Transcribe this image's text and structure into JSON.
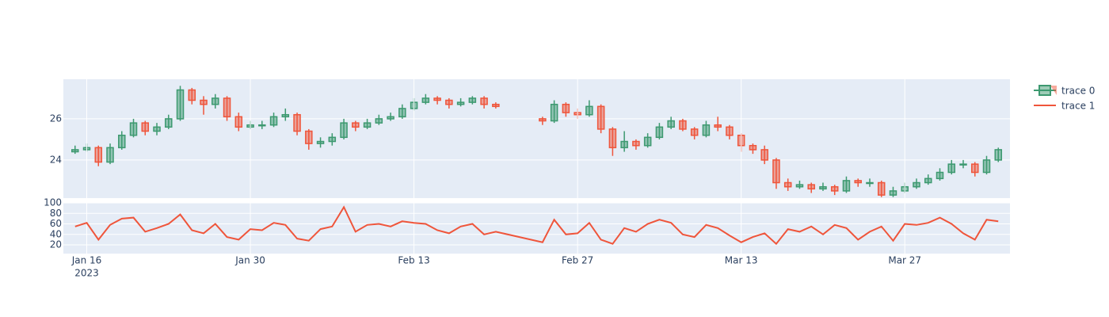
{
  "chart_data": [
    {
      "type": "candlestick",
      "name": "trace 0",
      "increasing_color": "#3D9970",
      "decreasing_color": "#EF553B",
      "x": [
        "2023-01-15",
        "2023-01-16",
        "2023-01-17",
        "2023-01-18",
        "2023-01-19",
        "2023-01-20",
        "2023-01-21",
        "2023-01-22",
        "2023-01-23",
        "2023-01-24",
        "2023-01-25",
        "2023-01-26",
        "2023-01-27",
        "2023-01-28",
        "2023-01-29",
        "2023-01-30",
        "2023-01-31",
        "2023-02-01",
        "2023-02-02",
        "2023-02-03",
        "2023-02-04",
        "2023-02-05",
        "2023-02-06",
        "2023-02-07",
        "2023-02-08",
        "2023-02-09",
        "2023-02-10",
        "2023-02-11",
        "2023-02-12",
        "2023-02-13",
        "2023-02-14",
        "2023-02-15",
        "2023-02-16",
        "2023-02-17",
        "2023-02-18",
        "2023-02-19",
        "2023-02-20",
        "2023-02-24",
        "2023-02-25",
        "2023-02-26",
        "2023-02-27",
        "2023-02-28",
        "2023-03-01",
        "2023-03-02",
        "2023-03-03",
        "2023-03-04",
        "2023-03-05",
        "2023-03-06",
        "2023-03-07",
        "2023-03-08",
        "2023-03-09",
        "2023-03-10",
        "2023-03-11",
        "2023-03-12",
        "2023-03-13",
        "2023-03-14",
        "2023-03-15",
        "2023-03-16",
        "2023-03-17",
        "2023-03-18",
        "2023-03-19",
        "2023-03-20",
        "2023-03-21",
        "2023-03-22",
        "2023-03-23",
        "2023-03-24",
        "2023-03-25",
        "2023-03-26",
        "2023-03-27",
        "2023-03-28",
        "2023-03-29",
        "2023-03-30",
        "2023-03-31",
        "2023-04-01",
        "2023-04-02",
        "2023-04-03",
        "2023-04-04"
      ],
      "open": [
        24.4,
        24.5,
        24.6,
        23.9,
        24.6,
        25.2,
        25.8,
        25.4,
        25.6,
        26.0,
        27.4,
        26.9,
        26.7,
        27.0,
        26.1,
        25.6,
        25.7,
        25.7,
        26.1,
        26.2,
        25.4,
        24.8,
        24.9,
        25.1,
        25.8,
        25.6,
        25.8,
        26.0,
        26.1,
        26.5,
        26.8,
        27.0,
        26.9,
        26.7,
        26.8,
        27.0,
        26.7,
        26.0,
        25.9,
        26.7,
        26.3,
        26.2,
        26.6,
        25.5,
        24.6,
        24.9,
        24.7,
        25.1,
        25.6,
        25.9,
        25.5,
        25.2,
        25.7,
        25.6,
        25.2,
        24.7,
        24.5,
        24.0,
        22.9,
        22.7,
        22.8,
        22.6,
        22.7,
        22.5,
        23.0,
        22.9,
        22.9,
        22.3,
        22.5,
        22.7,
        22.9,
        23.1,
        23.4,
        23.8,
        23.8,
        23.4,
        24.0
      ],
      "high": [
        24.7,
        24.8,
        24.7,
        24.8,
        25.4,
        26.0,
        25.9,
        25.8,
        26.2,
        27.6,
        27.5,
        27.1,
        27.2,
        27.1,
        26.3,
        25.9,
        25.9,
        26.3,
        26.5,
        26.3,
        25.5,
        25.1,
        25.3,
        26.0,
        25.9,
        26.0,
        26.2,
        26.3,
        26.7,
        27.0,
        27.2,
        27.1,
        27.0,
        27.0,
        27.1,
        27.1,
        26.8,
        26.1,
        26.9,
        26.8,
        26.5,
        26.9,
        26.7,
        25.6,
        25.4,
        25.0,
        25.3,
        25.8,
        26.1,
        26.0,
        25.6,
        25.9,
        26.1,
        25.7,
        25.3,
        24.8,
        24.7,
        24.1,
        23.1,
        23.0,
        22.9,
        22.9,
        22.8,
        23.2,
        23.1,
        23.1,
        23.0,
        22.7,
        22.9,
        23.1,
        23.3,
        23.6,
        24.0,
        24.0,
        23.9,
        24.2,
        24.6
      ],
      "low": [
        24.3,
        24.4,
        23.7,
        23.8,
        24.5,
        25.1,
        25.2,
        25.2,
        25.5,
        25.9,
        26.7,
        26.2,
        26.5,
        25.9,
        25.4,
        25.5,
        25.5,
        25.6,
        25.9,
        25.2,
        24.5,
        24.6,
        24.7,
        25.0,
        25.4,
        25.5,
        25.7,
        25.9,
        26.0,
        26.4,
        26.7,
        26.7,
        26.5,
        26.6,
        26.7,
        26.5,
        26.5,
        25.7,
        25.8,
        26.1,
        26.0,
        26.1,
        25.3,
        24.2,
        24.4,
        24.5,
        24.6,
        25.0,
        25.5,
        25.4,
        25.0,
        25.1,
        25.4,
        25.0,
        24.4,
        24.3,
        23.8,
        22.6,
        22.5,
        22.6,
        22.4,
        22.5,
        22.3,
        22.4,
        22.7,
        22.7,
        22.2,
        22.2,
        22.4,
        22.6,
        22.8,
        23.0,
        23.3,
        23.6,
        23.2,
        23.3,
        23.9
      ],
      "close": [
        24.5,
        24.6,
        23.9,
        24.6,
        25.2,
        25.8,
        25.4,
        25.6,
        26.0,
        27.4,
        26.9,
        26.7,
        27.0,
        26.1,
        25.6,
        25.7,
        25.7,
        26.1,
        26.2,
        25.4,
        24.8,
        24.9,
        25.1,
        25.8,
        25.6,
        25.8,
        26.0,
        26.1,
        26.5,
        26.8,
        27.0,
        26.9,
        26.7,
        26.8,
        27.0,
        26.7,
        26.6,
        25.9,
        26.7,
        26.3,
        26.2,
        26.6,
        25.5,
        24.6,
        24.9,
        24.7,
        25.1,
        25.6,
        25.9,
        25.5,
        25.2,
        25.7,
        25.6,
        25.2,
        24.7,
        24.5,
        24.0,
        22.9,
        22.7,
        22.8,
        22.6,
        22.7,
        22.5,
        23.0,
        22.9,
        22.9,
        22.3,
        22.5,
        22.7,
        22.9,
        23.1,
        23.4,
        23.8,
        23.8,
        23.4,
        24.0,
        24.5
      ],
      "xlim": [
        "2023-01-14",
        "2023-04-05"
      ],
      "ylim": [
        22.15,
        27.92
      ],
      "yticks": [
        24,
        26
      ],
      "grid": true
    },
    {
      "type": "line",
      "name": "trace 1",
      "color": "#EF553B",
      "x": [
        "2023-01-15",
        "2023-01-16",
        "2023-01-17",
        "2023-01-18",
        "2023-01-19",
        "2023-01-20",
        "2023-01-21",
        "2023-01-22",
        "2023-01-23",
        "2023-01-24",
        "2023-01-25",
        "2023-01-26",
        "2023-01-27",
        "2023-01-28",
        "2023-01-29",
        "2023-01-30",
        "2023-01-31",
        "2023-02-01",
        "2023-02-02",
        "2023-02-03",
        "2023-02-04",
        "2023-02-05",
        "2023-02-06",
        "2023-02-07",
        "2023-02-08",
        "2023-02-09",
        "2023-02-10",
        "2023-02-11",
        "2023-02-12",
        "2023-02-13",
        "2023-02-14",
        "2023-02-15",
        "2023-02-16",
        "2023-02-17",
        "2023-02-18",
        "2023-02-19",
        "2023-02-20",
        "2023-02-24",
        "2023-02-25",
        "2023-02-26",
        "2023-02-27",
        "2023-02-28",
        "2023-03-01",
        "2023-03-02",
        "2023-03-03",
        "2023-03-04",
        "2023-03-05",
        "2023-03-06",
        "2023-03-07",
        "2023-03-08",
        "2023-03-09",
        "2023-03-10",
        "2023-03-11",
        "2023-03-12",
        "2023-03-13",
        "2023-03-14",
        "2023-03-15",
        "2023-03-16",
        "2023-03-17",
        "2023-03-18",
        "2023-03-19",
        "2023-03-20",
        "2023-03-21",
        "2023-03-22",
        "2023-03-23",
        "2023-03-24",
        "2023-03-25",
        "2023-03-26",
        "2023-03-27",
        "2023-03-28",
        "2023-03-29",
        "2023-03-30",
        "2023-03-31",
        "2023-04-01",
        "2023-04-02",
        "2023-04-03",
        "2023-04-04"
      ],
      "values": [
        55,
        62,
        30,
        58,
        70,
        72,
        45,
        52,
        60,
        78,
        48,
        42,
        60,
        35,
        30,
        50,
        48,
        62,
        58,
        32,
        28,
        50,
        55,
        92,
        45,
        58,
        60,
        55,
        65,
        62,
        60,
        48,
        42,
        55,
        60,
        40,
        45,
        25,
        68,
        40,
        42,
        62,
        30,
        22,
        52,
        45,
        60,
        68,
        62,
        40,
        35,
        58,
        52,
        38,
        25,
        35,
        42,
        22,
        50,
        45,
        55,
        40,
        58,
        52,
        30,
        45,
        55,
        28,
        60,
        58,
        62,
        72,
        60,
        42,
        30,
        68,
        65
      ],
      "xlim": [
        "2023-01-14",
        "2023-04-05"
      ],
      "ylim": [
        3.4,
        100
      ],
      "yticks": [
        20,
        40,
        60,
        80,
        100
      ],
      "grid": true,
      "xticks": [
        {
          "value": "2023-01-16",
          "label": "Jan 16"
        },
        {
          "value": "2023-01-30",
          "label": "Jan 30"
        },
        {
          "value": "2023-02-13",
          "label": "Feb 13"
        },
        {
          "value": "2023-02-27",
          "label": "Feb 27"
        },
        {
          "value": "2023-03-13",
          "label": "Mar 13"
        },
        {
          "value": "2023-03-27",
          "label": "Mar 27"
        }
      ],
      "xtick_year": "2023"
    }
  ]
}
